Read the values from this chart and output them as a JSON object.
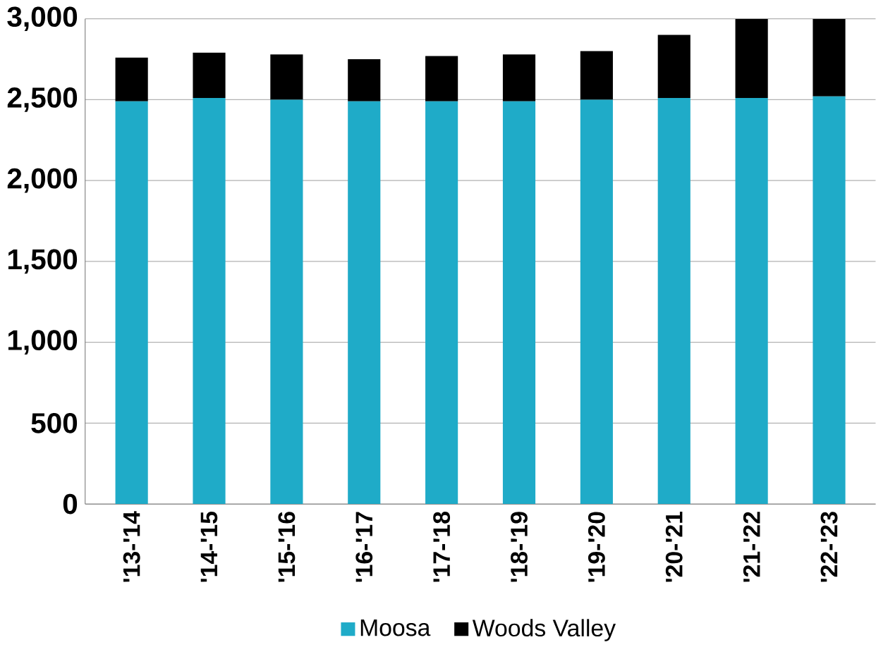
{
  "chart_data": {
    "type": "bar",
    "stacked": true,
    "categories": [
      "'13-'14",
      "'14-'15",
      "'15-'16",
      "'16-'17",
      "'17-'18",
      "'18-'19",
      "'19-'20",
      "'20-'21",
      "'21-'22",
      "'22-'23"
    ],
    "series": [
      {
        "name": "Moosa",
        "color": "#1fabc8",
        "values": [
          2490,
          2510,
          2500,
          2490,
          2490,
          2490,
          2500,
          2510,
          2510,
          2520
        ]
      },
      {
        "name": "Woods Valley",
        "color": "#000000",
        "values": [
          270,
          280,
          280,
          260,
          280,
          290,
          300,
          390,
          490,
          480
        ]
      }
    ],
    "ylim": [
      0,
      3000
    ],
    "yticks": [
      {
        "value": 0,
        "label": "0"
      },
      {
        "value": 500,
        "label": "500"
      },
      {
        "value": 1000,
        "label": "1,000"
      },
      {
        "value": 1500,
        "label": "1,500"
      },
      {
        "value": 2000,
        "label": "2,000"
      },
      {
        "value": 2500,
        "label": "2,500"
      },
      {
        "value": 3000,
        "label": "3,000"
      }
    ],
    "grid": "y",
    "legend": "bottom"
  }
}
